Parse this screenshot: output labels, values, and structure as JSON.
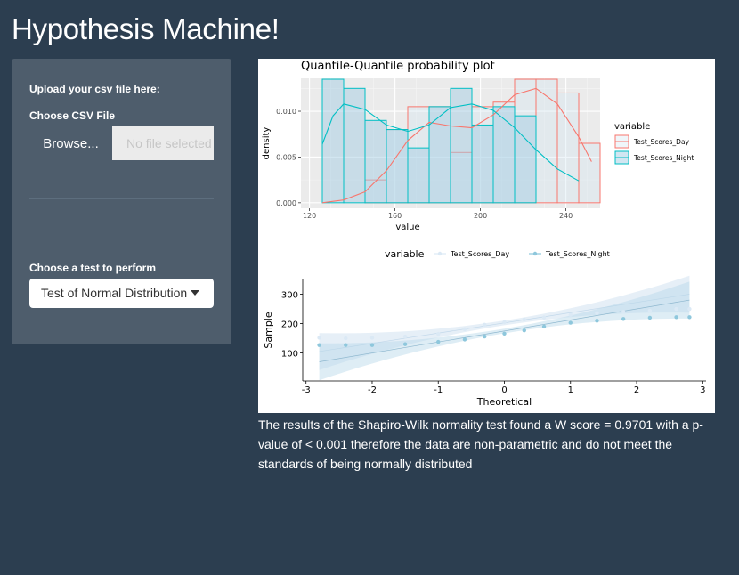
{
  "app": {
    "title": "Hypothesis Machine!"
  },
  "sidebar": {
    "upload_heading": "Upload your csv file here:",
    "file_label": "Choose CSV File",
    "browse_label": "Browse...",
    "file_placeholder": "No file selected",
    "test_label": "Choose a test to perform",
    "test_selected": "Test of Normal Distribution"
  },
  "colors": {
    "background": "#2c3e50",
    "sidebar": "#4e5d6c",
    "day_series": "#f8766d",
    "night_series": "#00bfc4",
    "qq_day": "#dbe9f5",
    "qq_night": "#8ec7dc"
  },
  "result": {
    "text": "The results of the Shapiro-Wilk normality test found a W score = 0.9701 with a p-value of < 0.001 therefore the data are non-parametric and do not meet the standards of being normally distributed"
  },
  "chart_data": [
    {
      "type": "bar",
      "subtype": "histogram-with-density",
      "title": "Quantile-Quantile probability plot",
      "xlabel": "value",
      "ylabel": "density",
      "xlim": [
        116,
        256
      ],
      "ylim": [
        -0.0006,
        0.0136
      ],
      "x_ticks": [
        "120",
        "160",
        "200",
        "240"
      ],
      "y_ticks": [
        "0.000",
        "0.005",
        "0.010"
      ],
      "grid": true,
      "legend": {
        "title": "variable",
        "position": "right"
      },
      "bin_edges": [
        126,
        136,
        146,
        156,
        166,
        176,
        186,
        196,
        206,
        216,
        226,
        236,
        246,
        256
      ],
      "series": [
        {
          "name": "Test_Scores_Day",
          "color": "#f8766d",
          "values": [
            0.0,
            0.0,
            0.0025,
            0.008,
            0.0105,
            0.0105,
            0.0055,
            0.0105,
            0.011,
            0.0135,
            0.0135,
            0.012,
            0.0065
          ],
          "density_curve": [
            [
              126,
              0.0
            ],
            [
              136,
              0.0003
            ],
            [
              146,
              0.0012
            ],
            [
              156,
              0.0035
            ],
            [
              166,
              0.0068
            ],
            [
              176,
              0.0088
            ],
            [
              186,
              0.0084
            ],
            [
              196,
              0.0082
            ],
            [
              206,
              0.0096
            ],
            [
              216,
              0.0118
            ],
            [
              226,
              0.0125
            ],
            [
              236,
              0.0108
            ],
            [
              246,
              0.0072
            ],
            [
              252,
              0.0045
            ]
          ]
        },
        {
          "name": "Test_Scores_Night",
          "color": "#00bfc4",
          "values": [
            0.0135,
            0.0125,
            0.009,
            0.008,
            0.006,
            0.0105,
            0.0125,
            0.0085,
            0.0105,
            0.0095,
            0.0,
            0.0,
            0.0
          ],
          "density_curve": [
            [
              126,
              0.0064
            ],
            [
              131,
              0.0095
            ],
            [
              136,
              0.0108
            ],
            [
              146,
              0.0102
            ],
            [
              156,
              0.0085
            ],
            [
              166,
              0.0078
            ],
            [
              176,
              0.0085
            ],
            [
              186,
              0.0104
            ],
            [
              196,
              0.0108
            ],
            [
              206,
              0.0101
            ],
            [
              216,
              0.0082
            ],
            [
              226,
              0.0058
            ],
            [
              236,
              0.0037
            ],
            [
              246,
              0.0024
            ]
          ]
        }
      ]
    },
    {
      "type": "scatter",
      "subtype": "qq-plot",
      "xlabel": "Theoretical",
      "ylabel": "Sample",
      "xlim": [
        -3.05,
        3.05
      ],
      "ylim": [
        5,
        350
      ],
      "x_ticks": [
        "-3",
        "-2",
        "-1",
        "0",
        "1",
        "2",
        "3"
      ],
      "y_ticks": [
        "100",
        "200",
        "300"
      ],
      "legend": {
        "title": "variable",
        "position": "top"
      },
      "series": [
        {
          "name": "Test_Scores_Day",
          "color": "#dbe9f5",
          "quantile_points": [
            [
              -2.8,
              152
            ],
            [
              -2.4,
              150
            ],
            [
              -2.0,
              152
            ],
            [
              -1.5,
              156
            ],
            [
              -1.0,
              165
            ],
            [
              -0.6,
              181
            ],
            [
              -0.3,
              196
            ],
            [
              0.0,
              205
            ],
            [
              0.3,
              214
            ],
            [
              0.6,
              221
            ],
            [
              1.0,
              230
            ],
            [
              1.4,
              236
            ],
            [
              1.8,
              240
            ],
            [
              2.2,
              244
            ],
            [
              2.6,
              250
            ],
            [
              2.8,
              250
            ]
          ],
          "ref_line": [
            [
              -2.8,
              105
            ],
            [
              2.8,
              300
            ]
          ]
        },
        {
          "name": "Test_Scores_Night",
          "color": "#8ec7dc",
          "quantile_points": [
            [
              -2.8,
              127
            ],
            [
              -2.4,
              127
            ],
            [
              -2.0,
              127
            ],
            [
              -1.5,
              130
            ],
            [
              -1.0,
              138
            ],
            [
              -0.6,
              146
            ],
            [
              -0.3,
              156
            ],
            [
              0.0,
              166
            ],
            [
              0.3,
              177
            ],
            [
              0.6,
              190
            ],
            [
              1.0,
              203
            ],
            [
              1.4,
              210
            ],
            [
              1.8,
              216
            ],
            [
              2.2,
              220
            ],
            [
              2.6,
              222
            ],
            [
              2.8,
              222
            ]
          ],
          "ref_line": [
            [
              -2.8,
              70
            ],
            [
              2.8,
              280
            ]
          ]
        }
      ]
    }
  ]
}
